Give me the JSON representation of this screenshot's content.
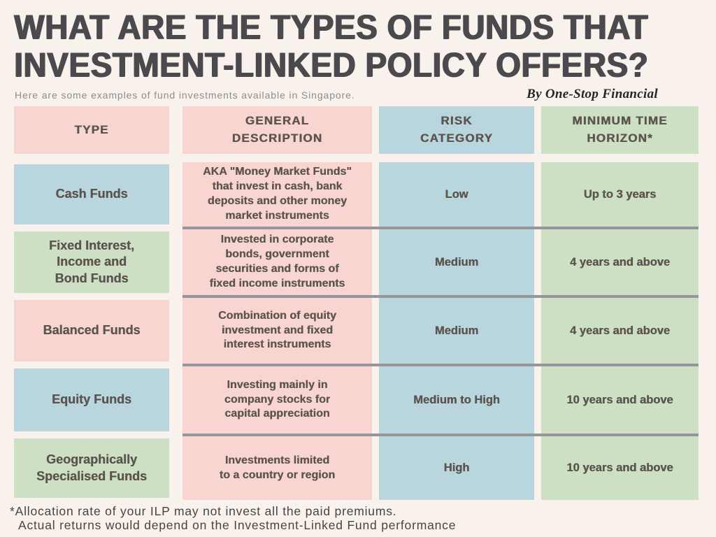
{
  "page": {
    "title": "WHAT ARE THE TYPES OF FUNDS THAT\nINVESTMENT-LINKED POLICY OFFERS?",
    "subtitle": "Here are some examples of fund investments available in Singapore.",
    "byline": "By One-Stop Financial",
    "footnote_line1": "*Allocation rate of your ILP may not invest all the paid premiums.",
    "footnote_line2": "Actual returns would depend on the Investment-Linked Fund performance"
  },
  "colors": {
    "background": "#f9f1eb",
    "pink_cell": "#f9d5d1",
    "blue_cell": "#b9d6de",
    "green_cell": "#cde0c4",
    "separator_line": "#95969a",
    "title_text": "#4a4a4e",
    "table_text": "#5c544e"
  },
  "table": {
    "headers": [
      "TYPE",
      "GENERAL\nDESCRIPTION",
      "RISK\nCATEGORY",
      "MINIMUM TIME\nHORIZON*"
    ],
    "rows": [
      {
        "type": "Cash Funds",
        "description": "AKA \"Money Market Funds\"\nthat invest in cash, bank\ndeposits and other money\nmarket instruments",
        "risk": "Low",
        "horizon": "Up to 3 years"
      },
      {
        "type": "Fixed Interest,\nIncome and\nBond Funds",
        "description": "Invested in corporate\nbonds, government\nsecurities and forms of\nfixed income instruments",
        "risk": "Medium",
        "horizon": "4 years and above"
      },
      {
        "type": "Balanced Funds",
        "description": "Combination of equity\ninvestment and fixed\ninterest instruments",
        "risk": "Medium",
        "horizon": "4 years and above"
      },
      {
        "type": "Equity Funds",
        "description": "Investing mainly in\ncompany stocks for\ncapital appreciation",
        "risk": "Medium to High",
        "horizon": "10 years and above"
      },
      {
        "type": "Geographically\nSpecialised Funds",
        "description": "Investments limited\nto a country or region",
        "risk": "High",
        "horizon": "10 years and above"
      }
    ]
  }
}
